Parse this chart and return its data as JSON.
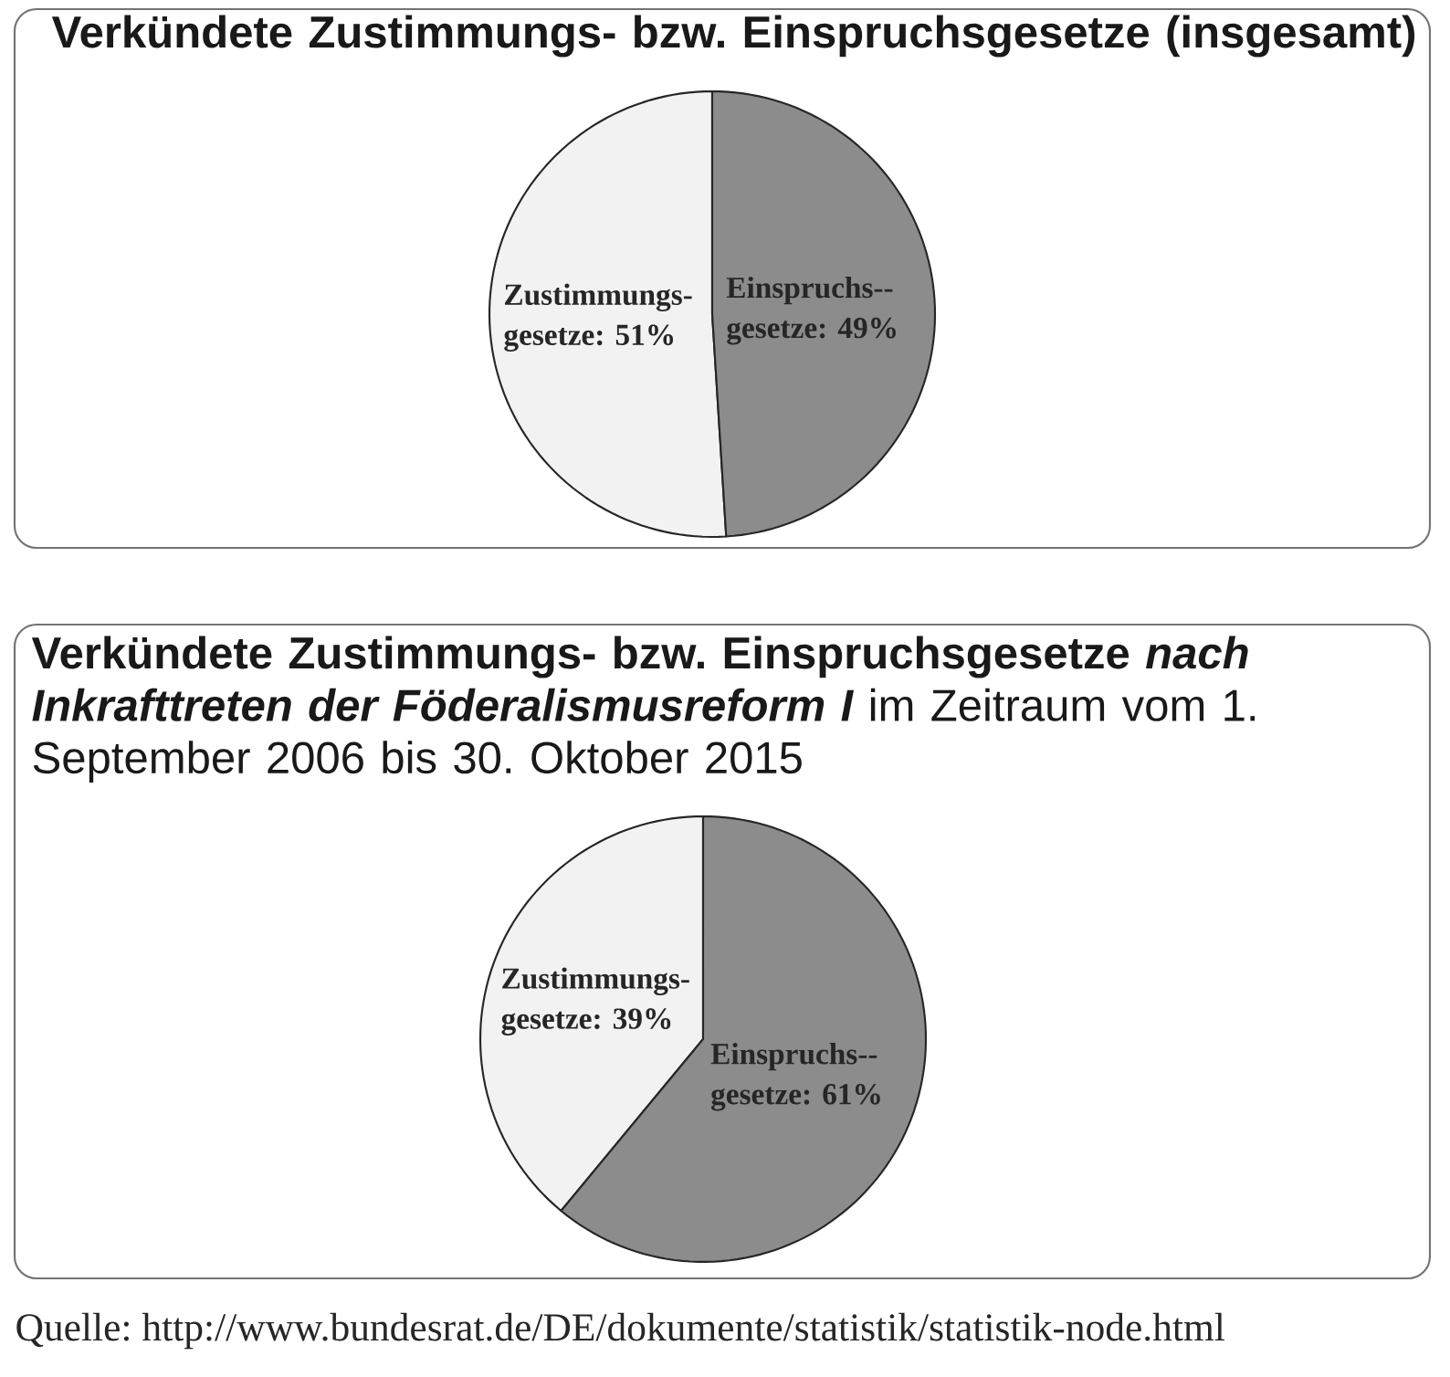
{
  "chart_data": [
    {
      "type": "pie",
      "title": "Verkündete Zustimmungs- bzw. Einspruchsgesetze (insgesamt)",
      "categories": [
        "Zustimmungs- gesetze",
        "Einspruchs-- gesetze"
      ],
      "values": [
        51,
        49
      ],
      "value_labels": [
        ": 51%",
        ": 49%"
      ],
      "colors": [
        "#f2f2f2",
        "#8c8c8c"
      ]
    },
    {
      "type": "pie",
      "title": "**Verkündete Zustimmungs- bzw. Einspruchsgesetze** *nach Inkrafttreten der Föderalismusreform I* im Zeitraum vom 1. September 2006 bis 30. Oktober 2015",
      "categories": [
        "Zustimmungs- gesetze",
        "Einspruchs-- gesetze"
      ],
      "values": [
        39,
        61
      ],
      "value_labels": [
        ": 39%",
        ": 61%"
      ],
      "colors": [
        "#f2f2f2",
        "#8c8c8c"
      ],
      "annotations": [
        "Quelle: http://www.bundesrat.de/DE/dokumente/statistik/statistik-node.html"
      ]
    }
  ]
}
